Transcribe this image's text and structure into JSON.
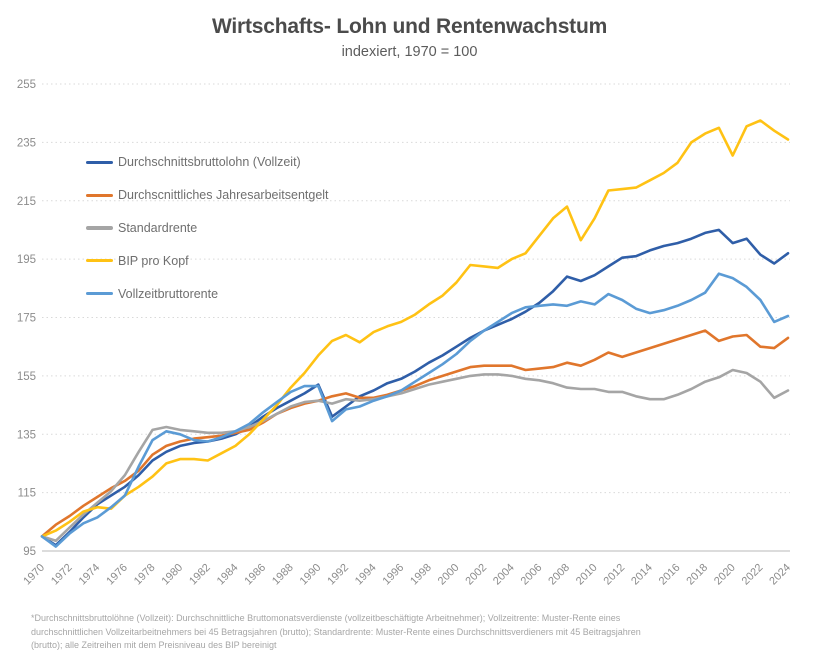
{
  "title": "Wirtschafts- Lohn und Rentenwachstum",
  "subtitle": "indexiert, 1970 = 100",
  "footnote": {
    "lines": [
      "*Durchschnittsbruttolöhne (Vollzeit): Durchschnittliche Bruttomonatsverdienste (vollzeitbeschäftigte Arbeitnehmer); Vollzeitrente: Muster-Rente eines",
      "durchschnittlichen Vollzeitarbeitnehmers bei 45 Betragsjahren (brutto); Standardrente: Muster-Rente eines Durchschnittsverdieners mit 45 Beitragsjahren",
      "(brutto); alle Zeitreihen mit dem Preisniveau des BIP bereinigt"
    ]
  },
  "chart_data": {
    "type": "line",
    "title": "Wirtschafts- Lohn und Rentenwachstum",
    "subtitle": "indexiert, 1970 = 100",
    "xlabel": "",
    "ylabel": "",
    "ylim": [
      95,
      255
    ],
    "ytick_step": 20,
    "x_tick_step": 2,
    "grid": "horizontal-dotted",
    "legend_position": "upper-left-inside",
    "x": [
      1970,
      1971,
      1972,
      1973,
      1974,
      1975,
      1976,
      1977,
      1978,
      1979,
      1980,
      1981,
      1982,
      1983,
      1984,
      1985,
      1986,
      1987,
      1988,
      1989,
      1990,
      1991,
      1992,
      1993,
      1994,
      1995,
      1996,
      1997,
      1998,
      1999,
      2000,
      2001,
      2002,
      2003,
      2004,
      2005,
      2006,
      2007,
      2008,
      2009,
      2010,
      2011,
      2012,
      2013,
      2014,
      2015,
      2016,
      2017,
      2018,
      2019,
      2020,
      2021,
      2022,
      2023,
      2024
    ],
    "series": [
      {
        "name": "Durchschnittsbruttolohn (Vollzeit)",
        "color": "#2F5EA8",
        "values": [
          100,
          97,
          101.5,
          106.5,
          111,
          114,
          117,
          121,
          126,
          129,
          131,
          132,
          132.5,
          133.5,
          135,
          137.5,
          141,
          144,
          146.5,
          149,
          152,
          141,
          144.5,
          148,
          150,
          152.5,
          154,
          156.5,
          159.5,
          162,
          165,
          168,
          170.5,
          172.5,
          174.5,
          177,
          180,
          184,
          189,
          187.5,
          189.5,
          192.5,
          195.5,
          196,
          198,
          199.5,
          200.5,
          202,
          204,
          205,
          200.5,
          202,
          196.5,
          193.5,
          197
        ]
      },
      {
        "name": "Durchscnittliches Jahresarbeitsentgelt",
        "color": "#E0762C",
        "values": [
          100,
          104,
          107,
          110.5,
          113.5,
          116.5,
          119,
          122.5,
          128,
          131,
          132.5,
          133.5,
          134,
          134.5,
          135.5,
          136.5,
          139,
          142,
          144,
          145.5,
          146.5,
          148,
          149,
          147.5,
          147.5,
          148.5,
          150,
          151.5,
          153.5,
          155,
          156.5,
          158,
          158.5,
          158.5,
          158.5,
          157,
          157.5,
          158,
          159.5,
          158.5,
          160.5,
          163,
          161.5,
          163,
          164.5,
          166,
          167.5,
          169,
          170.5,
          167,
          168.5,
          169,
          165,
          164.5,
          168
        ]
      },
      {
        "name": "Standardrente",
        "color": "#A5A5A5",
        "values": [
          100,
          98.5,
          103,
          107.5,
          111.5,
          115.5,
          121,
          129,
          136.5,
          137.5,
          136.5,
          136,
          135.5,
          135.5,
          136,
          137.5,
          139.5,
          142,
          144.5,
          146,
          146.5,
          145.5,
          147,
          146.5,
          147,
          148,
          149,
          150.5,
          152,
          153,
          154,
          155,
          155.5,
          155.5,
          155,
          154,
          153.5,
          152.5,
          151,
          150.5,
          150.5,
          149.5,
          149.5,
          148,
          147,
          147,
          148.5,
          150.5,
          153,
          154.5,
          157,
          156,
          153,
          147.5,
          150
        ]
      },
      {
        "name": "BIP pro Kopf",
        "color": "#FFC214",
        "values": [
          100,
          102,
          105,
          108.5,
          110,
          109.5,
          114,
          117,
          120.5,
          125,
          126.5,
          126.5,
          126,
          128.5,
          131,
          135,
          140,
          145,
          151,
          156,
          162,
          167,
          169,
          166.5,
          170,
          172,
          173.5,
          176,
          179.5,
          182.5,
          187,
          193,
          192.5,
          192,
          195,
          197,
          203,
          209,
          213,
          201.5,
          209,
          218.5,
          219,
          219.5,
          222,
          224.5,
          228,
          235,
          238,
          240,
          230.5,
          240.5,
          242.5,
          239,
          236
        ]
      },
      {
        "name": "Vollzeitbruttorente",
        "color": "#5B9BD5",
        "values": [
          100,
          96.5,
          101,
          104.5,
          106.5,
          110,
          114,
          124,
          133,
          136,
          135,
          133,
          132.5,
          134,
          136,
          138.5,
          142.5,
          146,
          149.5,
          151.5,
          151.5,
          139.5,
          143.5,
          144.5,
          146.5,
          148,
          150,
          153,
          156,
          159,
          162.5,
          167,
          170.5,
          173.5,
          176.5,
          178.5,
          179,
          179.5,
          179,
          180.5,
          179.5,
          183,
          181,
          178,
          176.5,
          177.5,
          179,
          181,
          183.5,
          190,
          188.5,
          185.5,
          181,
          173.5,
          175.5
        ]
      }
    ]
  }
}
